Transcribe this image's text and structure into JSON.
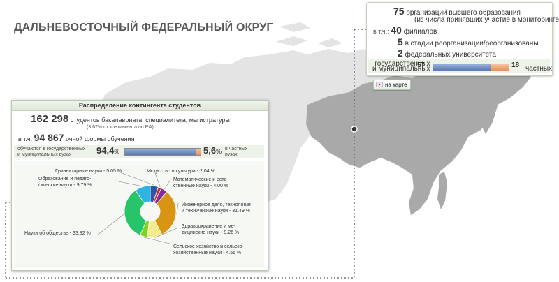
{
  "page": {
    "title": "ДАЛЬНЕВОСТОЧНЫЙ ФЕДЕРАЛЬНЫЙ ОКРУГ"
  },
  "summary": {
    "orgs_count": "75",
    "orgs_text": "организаций высшего образования",
    "orgs_note": "(из числа принявших участие в мониторинге*)",
    "incl_prefix": "в т.ч.:",
    "branches_count": "40",
    "branches_text": "филиалов",
    "reorg_count": "5",
    "reorg_text": "в стадии реорганизации/реорганизованы",
    "federal_count": "2",
    "federal_text": "федеральных университета",
    "public_label_line1": "государственных",
    "public_label_line2": "и муниципальных",
    "public_count": "57",
    "private_count": "18",
    "private_label": "частных",
    "public_share": 0.76
  },
  "map_button": {
    "label": "на карте",
    "icon": "map-icon"
  },
  "distribution": {
    "header": "Распределение контингента студентов",
    "students_count": "162 298",
    "students_text": "студентов бакалавриата, специалитета, магистратуры",
    "students_note": "(3,67% от контингента по РФ)",
    "fulltime_prefix": "в т.ч.",
    "fulltime_count": "94 867",
    "fulltime_text": "очной формы обучения",
    "public_text_line1": "обучаются в государственных",
    "public_text_line2": "и муниципальных вузах",
    "public_pct": "94,4",
    "public_pct_unit": "%",
    "private_pct": "5,6",
    "private_pct_unit": "%",
    "private_text_line1": "в частных",
    "private_text_line2": "вузах",
    "public_share": 0.944
  },
  "colors": {
    "map_gray": "#a9a9a9",
    "map_light": "#e3e3e3",
    "public_bar": "#5a79b4",
    "private_bar": "#e8925a"
  },
  "chart_data": {
    "type": "pie",
    "style": "donut",
    "slices": [
      {
        "label": "Гуманитарные науки - 5.05 %",
        "value": 5.05,
        "color": "#2a57a8"
      },
      {
        "label": "Искусство и культура - 2.04 %",
        "value": 2.04,
        "color": "#d62828"
      },
      {
        "label": "Математические и естественные науки - 4.00 %",
        "value": 4.0,
        "color": "#7a2f9a"
      },
      {
        "label": "Инженерное дело, технологии и технические науки - 31.49 %",
        "value": 31.49,
        "color": "#d99414"
      },
      {
        "label": "Здравоохранение и медицинские науки - 9.26 %",
        "value": 9.26,
        "color": "#f3ec8e"
      },
      {
        "label": "Сельское хозяйство и сельскохозяйственные науки - 4.56 %",
        "value": 4.56,
        "color": "#7ed321"
      },
      {
        "label": "Науки об обществе - 33.82 %",
        "value": 33.82,
        "color": "#27c46a"
      },
      {
        "label": "Образование и педагогические науки - 9.79 %",
        "value": 9.79,
        "color": "#2fb4e0"
      }
    ],
    "label_lines": [
      [
        "Гуманитарные науки - 5.05 %"
      ],
      [
        "Искусство и культура - 2.04 %"
      ],
      [
        "Математические и есте-",
        "ственные науки - 4.00 %"
      ],
      [
        "Инженерное дело, технологии",
        "и технические науки - 31.49 %"
      ],
      [
        "Здравоохранение и ме-",
        "дицинские науки - 9.26 %"
      ],
      [
        "Сельское хозяйство и сельско-",
        "хозяйственные науки - 4.56 %"
      ],
      [
        "Науки об обществе - 33.82 %"
      ],
      [
        "Образование и педаго-",
        "гические науки - 9.79 %"
      ]
    ]
  }
}
